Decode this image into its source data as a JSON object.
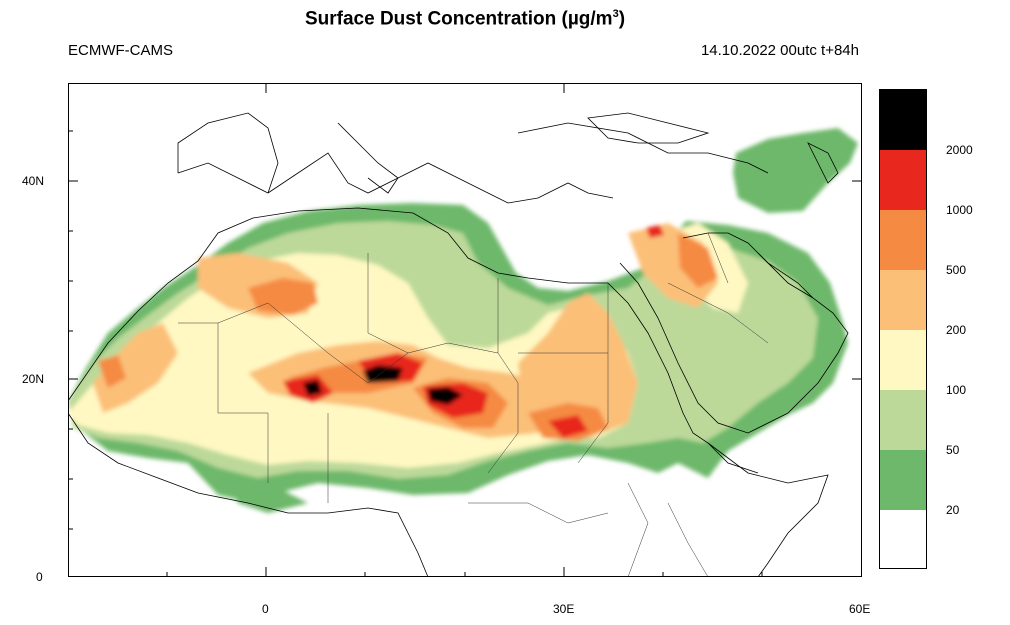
{
  "title": {
    "main": "Surface Dust Concentration (",
    "unit_mu": "µg/m",
    "unit_exp": "3",
    "close": ")"
  },
  "source_label": "ECMWF-CAMS",
  "run_label": "14.10.2022 00utc t+84h",
  "axes": {
    "lat_ticks": [
      "0",
      "20N",
      "40N"
    ],
    "lon_ticks": [
      "0",
      "30E",
      "60E"
    ]
  },
  "legend": {
    "levels": [
      "20",
      "50",
      "100",
      "200",
      "500",
      "1000",
      "2000"
    ],
    "colors": [
      "#ffffff",
      "#6db86a",
      "#bcd99a",
      "#fff8c2",
      "#fbbf78",
      "#f58a42",
      "#e8281e",
      "#000000"
    ]
  },
  "colors": {
    "coast": "#000000",
    "background": "#ffffff"
  }
}
